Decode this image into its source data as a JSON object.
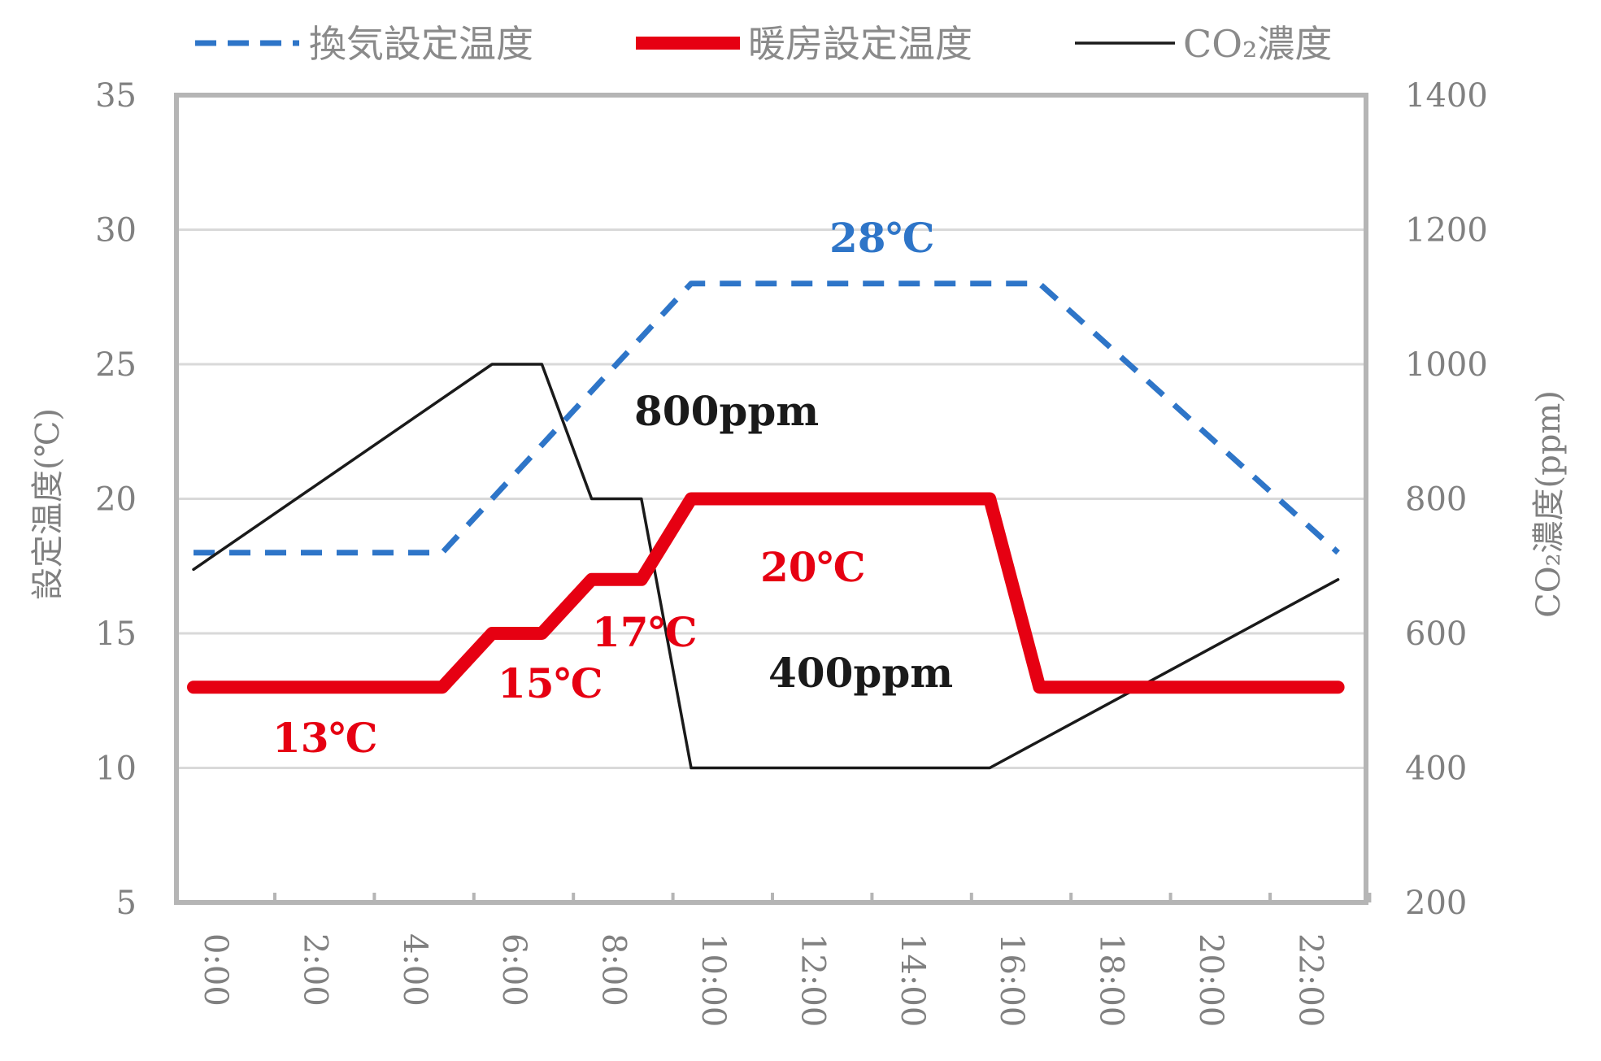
{
  "chart_data": {
    "type": "line",
    "title": "",
    "x": [
      "0:00",
      "1:00",
      "2:00",
      "3:00",
      "4:00",
      "5:00",
      "6:00",
      "7:00",
      "8:00",
      "9:00",
      "10:00",
      "11:00",
      "12:00",
      "13:00",
      "14:00",
      "15:00",
      "16:00",
      "17:00",
      "18:00",
      "19:00",
      "20:00",
      "21:00",
      "22:00",
      "23:00"
    ],
    "x_tick_labels": [
      "0:00",
      "2:00",
      "4:00",
      "6:00",
      "8:00",
      "10:00",
      "12:00",
      "14:00",
      "16:00",
      "18:00",
      "20:00",
      "22:00"
    ],
    "ylabel_left": "設定温度(℃)",
    "ylabel_right": "CO₂濃度(ppm)",
    "ylim_left": [
      5,
      35
    ],
    "yticks_left": [
      5,
      10,
      15,
      20,
      25,
      30,
      35
    ],
    "ylim_right": [
      200,
      1400
    ],
    "yticks_right": [
      200,
      400,
      600,
      800,
      1000,
      1200,
      1400
    ],
    "grid": true,
    "legend_position": "top",
    "series": [
      {
        "name": "換気設定温度",
        "axis": "left",
        "style": "dashed",
        "color": "#2e75c8",
        "x": [
          0,
          5,
          10,
          17,
          23
        ],
        "values": [
          18,
          18,
          28,
          28,
          18
        ]
      },
      {
        "name": "暖房設定温度",
        "axis": "left",
        "style": "thick",
        "color": "#e60012",
        "x": [
          0,
          5,
          6,
          7,
          8,
          9,
          10,
          16,
          17,
          23
        ],
        "values": [
          13,
          13,
          15,
          15,
          17,
          17,
          20,
          20,
          13,
          13
        ]
      },
      {
        "name": "CO₂濃度",
        "axis": "right",
        "style": "thin",
        "color": "#1a1a1a",
        "x": [
          0,
          6,
          7,
          8,
          9,
          10,
          16,
          23
        ],
        "values": [
          695,
          1000,
          1000,
          800,
          800,
          400,
          400,
          680
        ]
      }
    ],
    "annotations": [
      {
        "text": "28℃",
        "color": "#2e75c8"
      },
      {
        "text": "800ppm",
        "color": "#1a1a1a"
      },
      {
        "text": "20℃",
        "color": "#e60012"
      },
      {
        "text": "17℃",
        "color": "#e60012"
      },
      {
        "text": "15℃",
        "color": "#e60012"
      },
      {
        "text": "13℃",
        "color": "#e60012"
      },
      {
        "text": "400ppm",
        "color": "#1a1a1a"
      }
    ]
  }
}
